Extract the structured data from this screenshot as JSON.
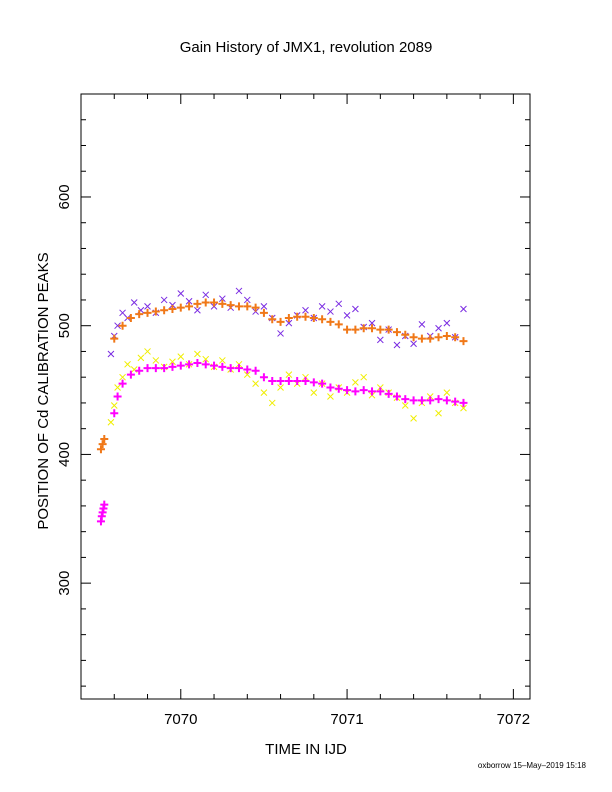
{
  "chart_data": {
    "type": "scatter",
    "title": "Gain History of JMX1, revolution 2089",
    "xlabel": "TIME IN IJD",
    "ylabel": "POSITION OF Cd CALIBRATION PEAKS",
    "xlim": [
      7069.4,
      7072.1
    ],
    "ylim": [
      210,
      680
    ],
    "xticks": [
      7070,
      7071,
      7072
    ],
    "xtick_labels": [
      "7070",
      "7071",
      "7072"
    ],
    "yticks": [
      300,
      400,
      500,
      600
    ],
    "ytick_labels": [
      "300",
      "400",
      "500",
      "600"
    ],
    "grid": false,
    "footer": "oxborrow 15–May–2019 15:18",
    "colors": {
      "purple": "#7a2be2",
      "orange": "#f07818",
      "yellow": "#f0ee00",
      "magenta": "#ff00ff"
    },
    "series": [
      {
        "marker": "x",
        "color": "#7a2be2",
        "x": [
          7069.58,
          7069.6,
          7069.62,
          7069.65,
          7069.68,
          7069.72,
          7069.76,
          7069.8,
          7069.85,
          7069.9,
          7069.95,
          7070.0,
          7070.05,
          7070.1,
          7070.15,
          7070.2,
          7070.25,
          7070.3,
          7070.35,
          7070.4,
          7070.45,
          7070.5,
          7070.55,
          7070.6,
          7070.65,
          7070.7,
          7070.75,
          7070.8,
          7070.85,
          7070.9,
          7070.95,
          7071.0,
          7071.05,
          7071.1,
          7071.15,
          7071.2,
          7071.25,
          7071.3,
          7071.35,
          7071.4,
          7071.45,
          7071.5,
          7071.55,
          7071.6,
          7071.65,
          7071.7
        ],
        "y": [
          478,
          492,
          500,
          510,
          506,
          518,
          512,
          515,
          510,
          520,
          516,
          525,
          519,
          512,
          524,
          515,
          521,
          514,
          527,
          520,
          511,
          515,
          506,
          494,
          502,
          508,
          512,
          506,
          515,
          511,
          517,
          508,
          513,
          499,
          502,
          489,
          497,
          485,
          492,
          486,
          501,
          492,
          498,
          502,
          491,
          513
        ]
      },
      {
        "marker": "+",
        "color": "#f07818",
        "x": [
          7069.52,
          7069.53,
          7069.54,
          7069.6,
          7069.65,
          7069.7,
          7069.75,
          7069.8,
          7069.85,
          7069.9,
          7069.95,
          7070.0,
          7070.05,
          7070.1,
          7070.15,
          7070.2,
          7070.25,
          7070.3,
          7070.35,
          7070.4,
          7070.45,
          7070.5,
          7070.55,
          7070.6,
          7070.65,
          7070.7,
          7070.75,
          7070.8,
          7070.85,
          7070.9,
          7070.95,
          7071.0,
          7071.05,
          7071.1,
          7071.15,
          7071.2,
          7071.25,
          7071.3,
          7071.35,
          7071.4,
          7071.45,
          7071.5,
          7071.55,
          7071.6,
          7071.65,
          7071.7
        ],
        "y": [
          404,
          408,
          412,
          490,
          500,
          506,
          509,
          510,
          511,
          512,
          513,
          514,
          515,
          517,
          518,
          518,
          517,
          516,
          515,
          515,
          514,
          510,
          505,
          503,
          506,
          507,
          507,
          506,
          505,
          503,
          501,
          497,
          497,
          498,
          498,
          497,
          497,
          495,
          493,
          491,
          490,
          490,
          491,
          492,
          491,
          488
        ]
      },
      {
        "marker": "x",
        "color": "#f0ee00",
        "x": [
          7069.58,
          7069.6,
          7069.62,
          7069.65,
          7069.68,
          7069.72,
          7069.76,
          7069.8,
          7069.85,
          7069.9,
          7069.95,
          7070.0,
          7070.05,
          7070.1,
          7070.15,
          7070.2,
          7070.25,
          7070.3,
          7070.35,
          7070.4,
          7070.45,
          7070.5,
          7070.55,
          7070.6,
          7070.65,
          7070.7,
          7070.75,
          7070.8,
          7070.85,
          7070.9,
          7070.95,
          7071.0,
          7071.05,
          7071.1,
          7071.15,
          7071.2,
          7071.25,
          7071.3,
          7071.35,
          7071.4,
          7071.45,
          7071.5,
          7071.55,
          7071.6,
          7071.65,
          7071.7
        ],
        "y": [
          425,
          438,
          452,
          460,
          470,
          466,
          475,
          480,
          473,
          468,
          472,
          476,
          470,
          478,
          474,
          468,
          473,
          466,
          470,
          462,
          455,
          448,
          440,
          452,
          462,
          455,
          460,
          448,
          455,
          445,
          452,
          448,
          456,
          460,
          446,
          452,
          448,
          444,
          438,
          428,
          440,
          445,
          432,
          448,
          440,
          436
        ]
      },
      {
        "marker": "+",
        "color": "#ff00ff",
        "x": [
          7069.52,
          7069.525,
          7069.53,
          7069.535,
          7069.54,
          7069.6,
          7069.62,
          7069.65,
          7069.7,
          7069.75,
          7069.8,
          7069.85,
          7069.9,
          7069.95,
          7070.0,
          7070.05,
          7070.1,
          7070.15,
          7070.2,
          7070.25,
          7070.3,
          7070.35,
          7070.4,
          7070.45,
          7070.5,
          7070.55,
          7070.6,
          7070.65,
          7070.7,
          7070.75,
          7070.8,
          7070.85,
          7070.9,
          7070.95,
          7071.0,
          7071.05,
          7071.1,
          7071.15,
          7071.2,
          7071.25,
          7071.3,
          7071.35,
          7071.4,
          7071.45,
          7071.5,
          7071.55,
          7071.6,
          7071.65,
          7071.7
        ],
        "y": [
          348,
          352,
          355,
          358,
          361,
          432,
          445,
          455,
          462,
          465,
          467,
          467,
          467,
          468,
          469,
          470,
          471,
          470,
          469,
          468,
          467,
          467,
          466,
          465,
          460,
          457,
          457,
          457,
          457,
          457,
          456,
          455,
          452,
          451,
          450,
          449,
          450,
          449,
          449,
          447,
          445,
          443,
          442,
          442,
          442,
          443,
          442,
          441,
          440
        ]
      }
    ]
  }
}
